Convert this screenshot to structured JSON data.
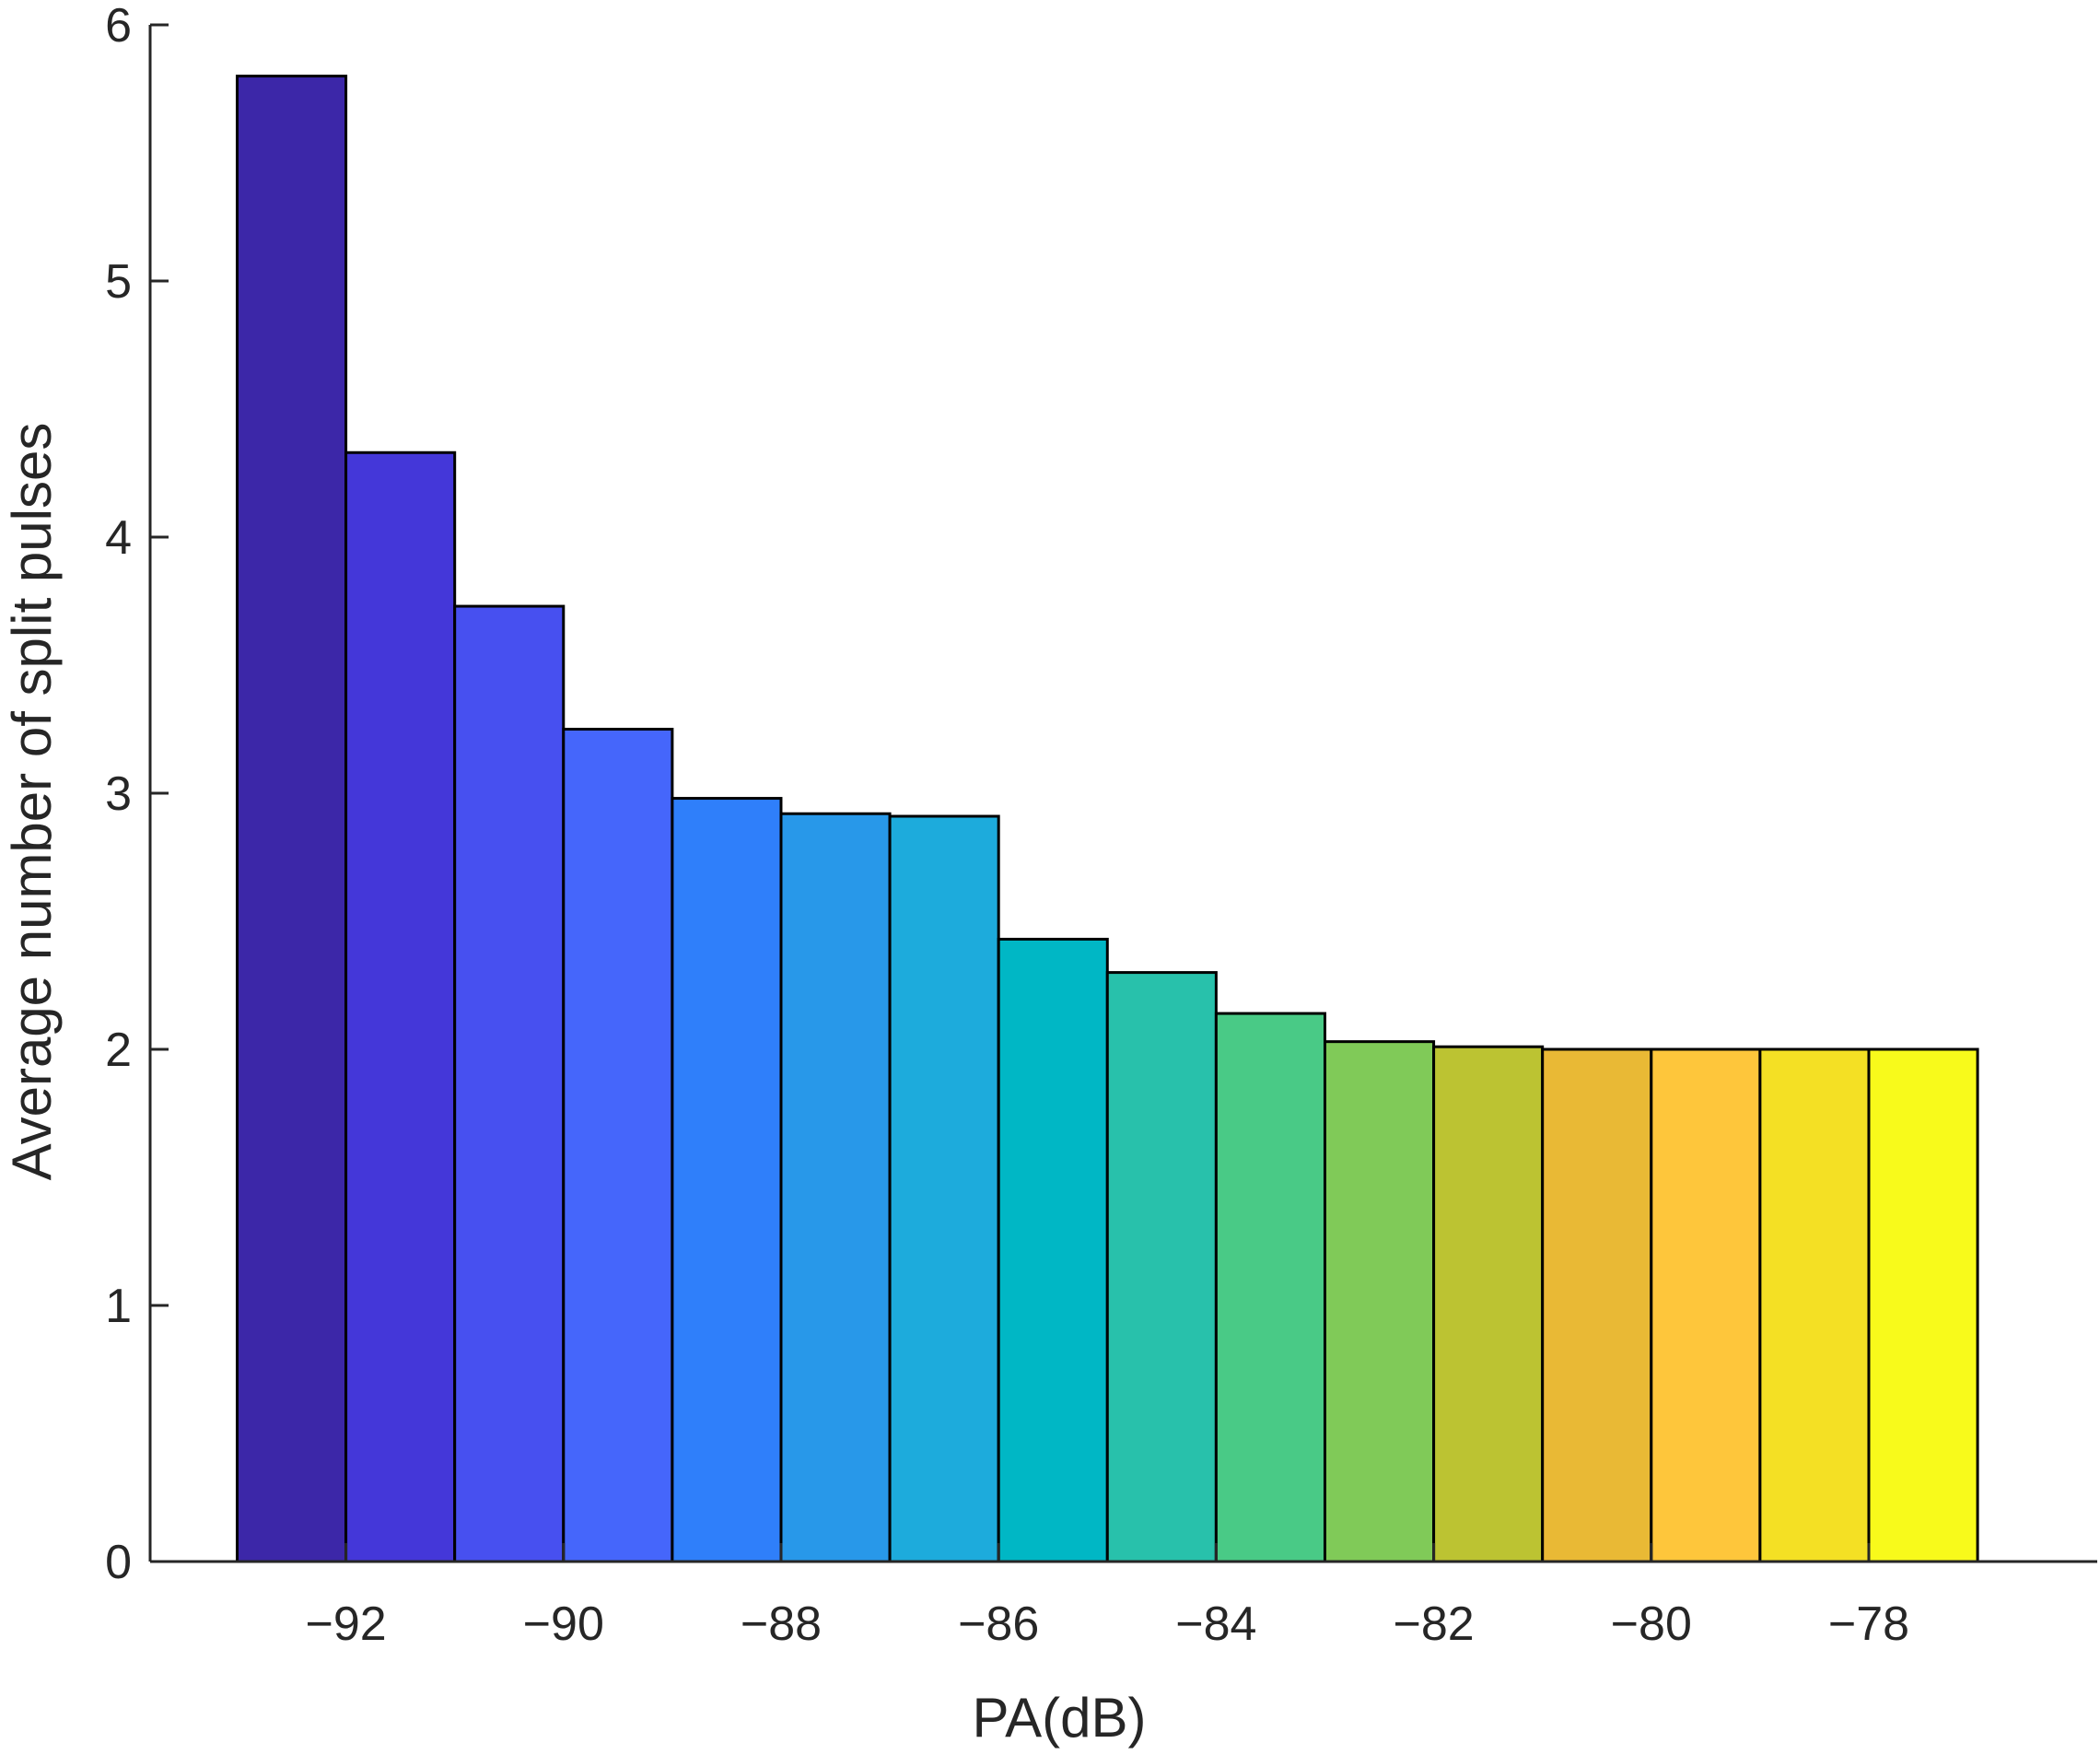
{
  "chart_data": {
    "type": "bar",
    "title": "",
    "xlabel": "PA(dB)",
    "ylabel": "Average number of split pulses",
    "x": [
      -92.5,
      -91.5,
      -90.5,
      -89.5,
      -88.5,
      -87.5,
      -86.5,
      -85.5,
      -84.5,
      -83.5,
      -82.5,
      -81.5,
      -80.5,
      -79.5,
      -78.5,
      -77.5
    ],
    "bin_width": 1,
    "values": [
      5.8,
      4.33,
      3.73,
      3.25,
      2.98,
      2.92,
      2.91,
      2.43,
      2.3,
      2.14,
      2.03,
      2.01,
      2.0,
      2.0,
      2.0,
      2.0
    ],
    "colors": [
      "#3c27a8",
      "#4437d9",
      "#4750f0",
      "#4566fb",
      "#2f7ffa",
      "#2898e9",
      "#1dabdc",
      "#00b7c5",
      "#28c1ab",
      "#49ca86",
      "#80ca58",
      "#bcc332",
      "#e9b935",
      "#fec63b",
      "#f4e024",
      "#f8fa1b"
    ],
    "xlim": [
      -93.8,
      -75.9
    ],
    "ylim": [
      0,
      6
    ],
    "xticks": [
      -92,
      -90,
      -88,
      -86,
      -84,
      -82,
      -80,
      -78
    ],
    "xtick_labels": [
      "−92",
      "−90",
      "−88",
      "−86",
      "−84",
      "−82",
      "−80",
      "−78"
    ],
    "yticks": [
      0,
      1,
      2,
      3,
      4,
      5,
      6
    ],
    "ytick_labels": [
      "0",
      "1",
      "2",
      "3",
      "4",
      "5",
      "6"
    ],
    "grid": false,
    "legend": "none"
  }
}
